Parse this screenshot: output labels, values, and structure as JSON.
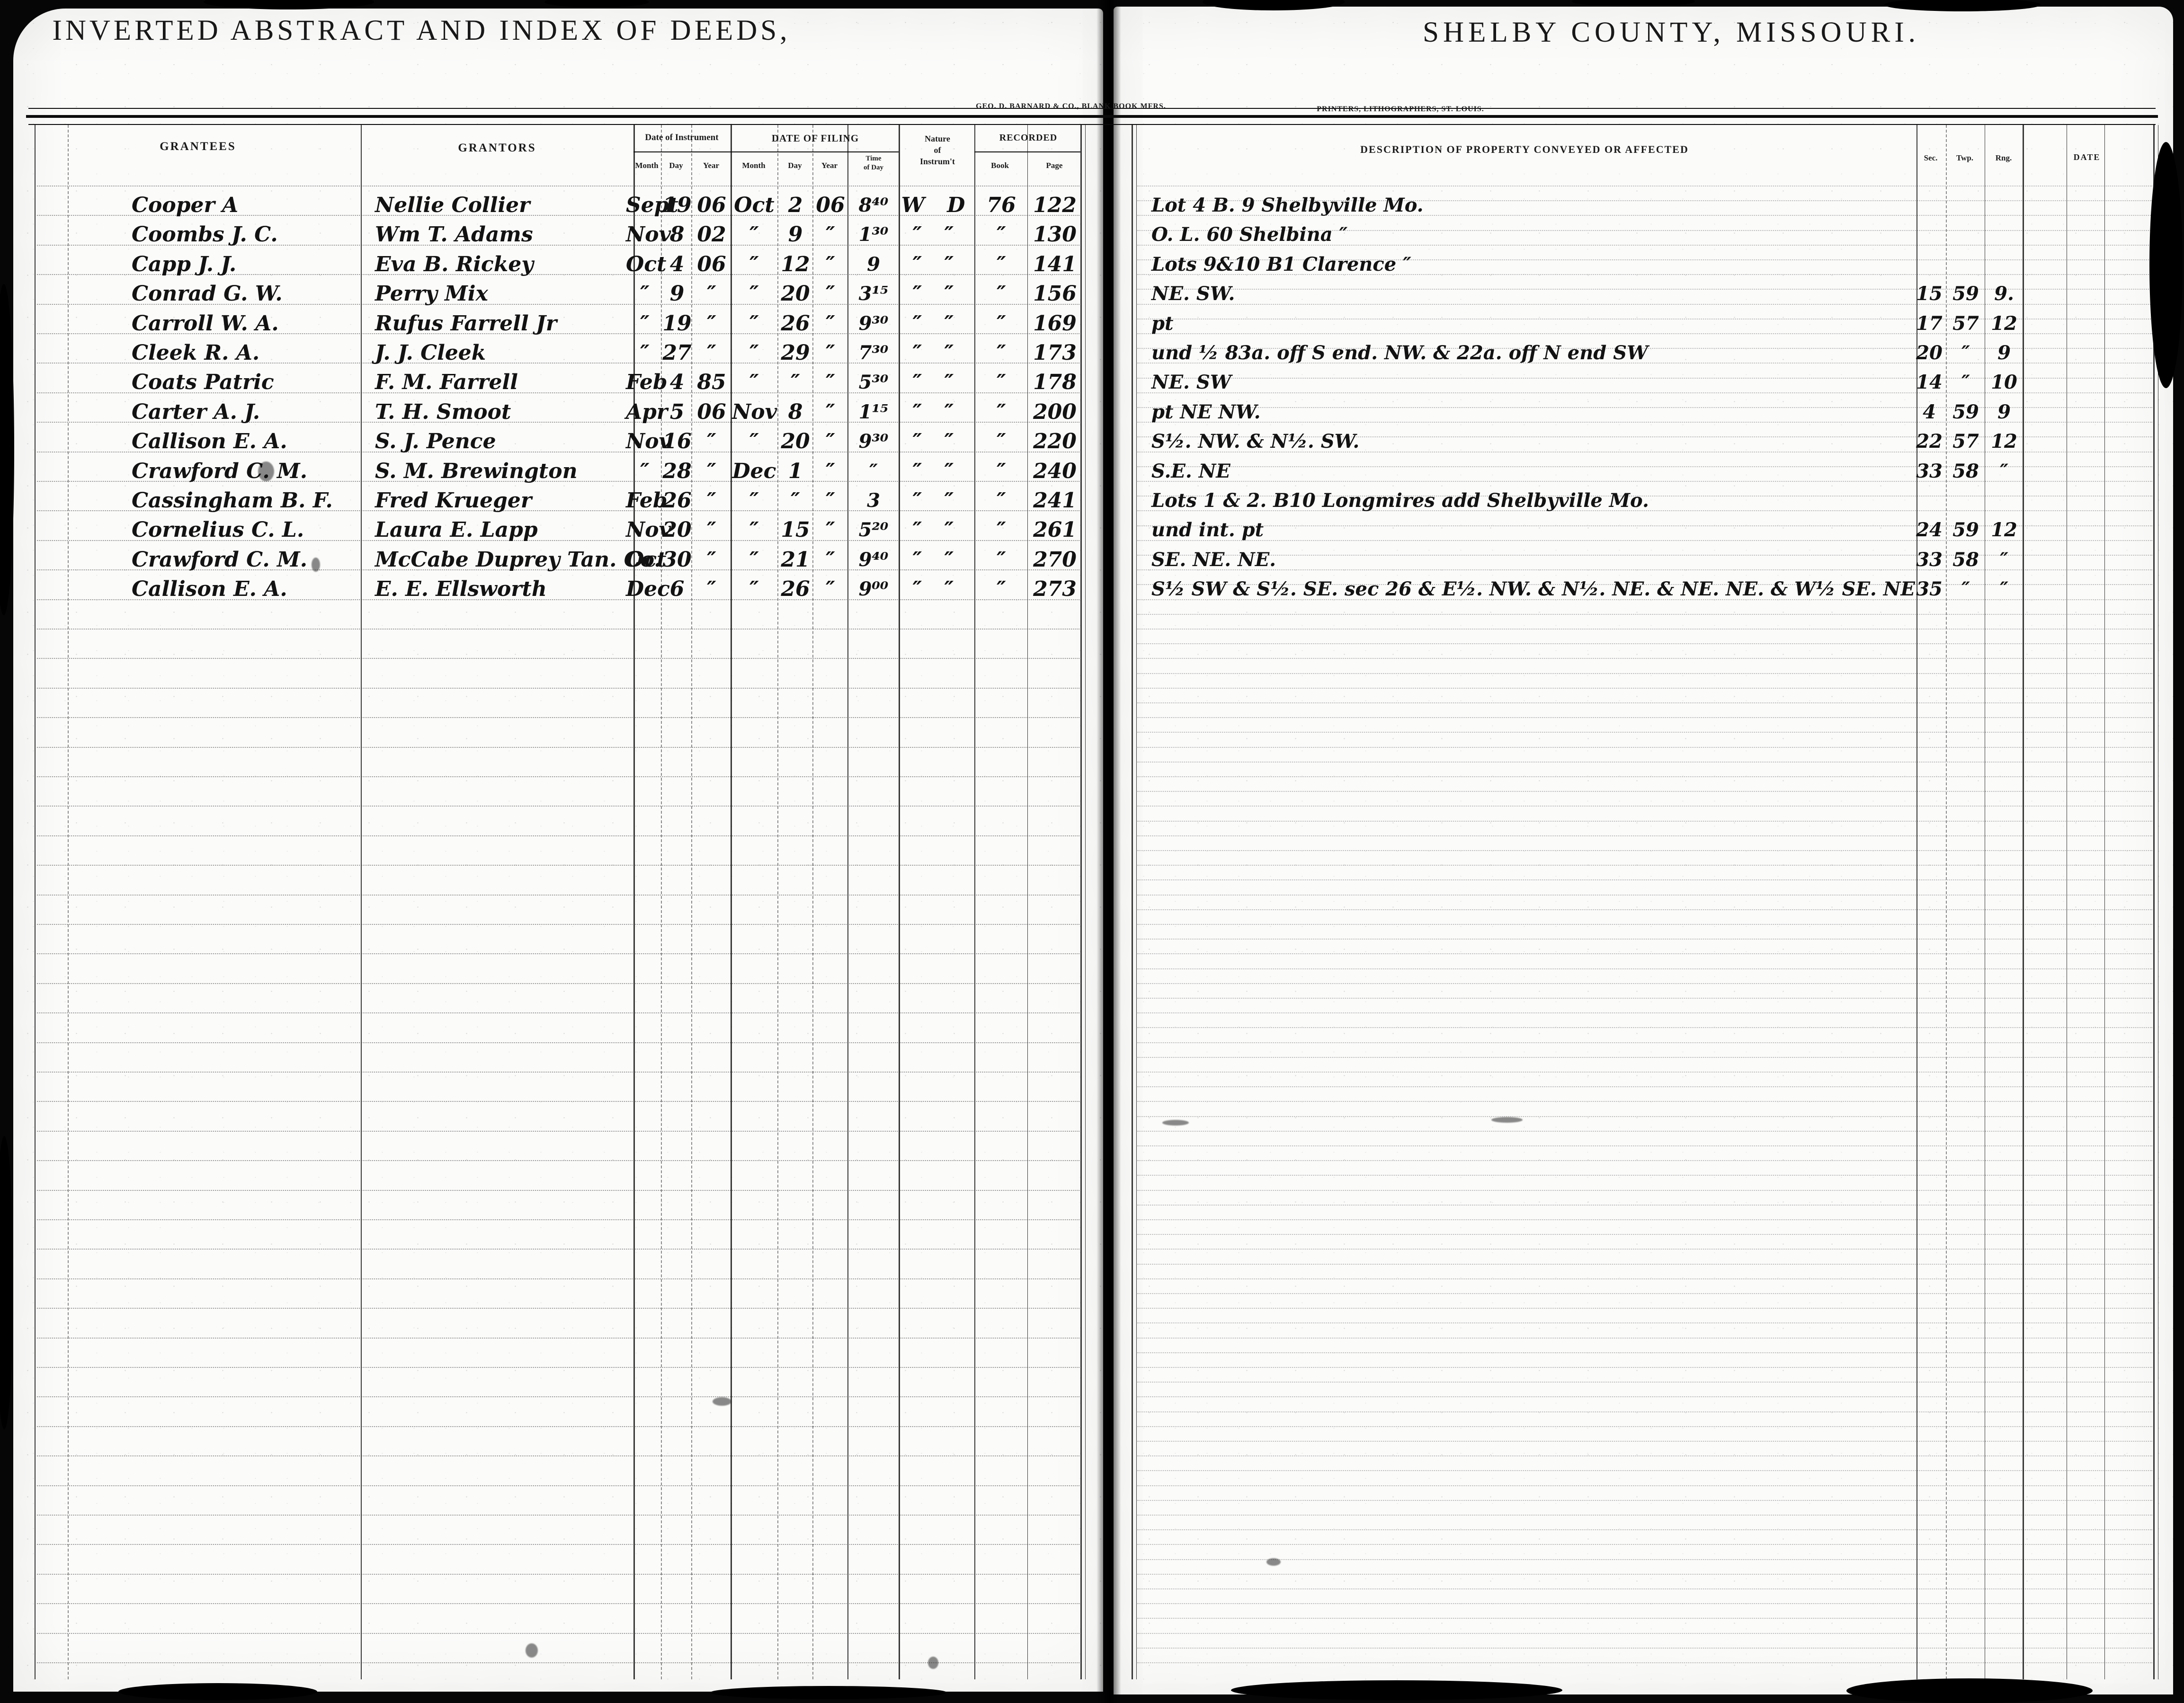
{
  "header": {
    "left_title": "INVERTED ABSTRACT AND INDEX OF DEEDS,",
    "right_title": "SHELBY COUNTY, MISSOURI.",
    "left_imprint": "GEO. D. BARNARD & CO., BLANK BOOK MFRS.",
    "right_imprint": "PRINTERS, LITHOGRAPHERS, ST. LOUIS."
  },
  "columns": {
    "grantees": "GRANTEES",
    "grantors": "GRANTORS",
    "date_of_instrument": "Date of Instrument",
    "date_of_filing": "DATE OF FILING",
    "month": "Month",
    "day": "Day",
    "year": "Year",
    "time_line1": "Time",
    "time_line2": "of Day",
    "nature_line1": "Nature",
    "nature_line2": "of",
    "nature_line3": "Instrum't",
    "recorded": "RECORDED",
    "book": "Book",
    "page": "Page",
    "description": "DESCRIPTION OF PROPERTY CONVEYED OR AFFECTED",
    "sec": "Sec.",
    "twp": "Twp.",
    "rng": "Rng.",
    "date": "DATE"
  },
  "entries": [
    {
      "grantee": "Cooper A",
      "grantor": "Nellie Collier",
      "inst_month": "Sept",
      "inst_day": "19",
      "inst_year": "06",
      "file_month": "Oct",
      "file_day": "2",
      "file_year": "06",
      "time": "8⁴⁰",
      "nature": "W D",
      "book": "76",
      "page": "122",
      "description": "Lot 4 B. 9 Shelbyville Mo.",
      "sec": "",
      "twp": "",
      "rng": ""
    },
    {
      "grantee": "Coombs J. C.",
      "grantor": "Wm T. Adams",
      "inst_month": "Nov",
      "inst_day": "8",
      "inst_year": "02",
      "file_month": "″",
      "file_day": "9",
      "file_year": "″",
      "time": "1³⁰",
      "nature": "″ ″",
      "book": "″",
      "page": "130",
      "description": "O. L. 60 Shelbina ″",
      "sec": "",
      "twp": "",
      "rng": ""
    },
    {
      "grantee": "Capp J. J.",
      "grantor": "Eva B. Rickey",
      "inst_month": "Oct",
      "inst_day": "4",
      "inst_year": "06",
      "file_month": "″",
      "file_day": "12",
      "file_year": "″",
      "time": "9",
      "nature": "″ ″",
      "book": "″",
      "page": "141",
      "description": "Lots 9&10 B1 Clarence ″",
      "sec": "",
      "twp": "",
      "rng": ""
    },
    {
      "grantee": "Conrad G. W.",
      "grantor": "Perry Mix",
      "inst_month": "″",
      "inst_day": "9",
      "inst_year": "″",
      "file_month": "″",
      "file_day": "20",
      "file_year": "″",
      "time": "3¹⁵",
      "nature": "″ ″",
      "book": "″",
      "page": "156",
      "description": "NE. SW.",
      "sec": "15",
      "twp": "59",
      "rng": "9."
    },
    {
      "grantee": "Carroll W. A.",
      "grantor": "Rufus Farrell Jr",
      "inst_month": "″",
      "inst_day": "19",
      "inst_year": "″",
      "file_month": "″",
      "file_day": "26",
      "file_year": "″",
      "time": "9³⁰",
      "nature": "″ ″",
      "book": "″",
      "page": "169",
      "description": "pt",
      "sec": "17",
      "twp": "57",
      "rng": "12"
    },
    {
      "grantee": "Cleek R. A.",
      "grantor": "J. J. Cleek",
      "inst_month": "″",
      "inst_day": "27",
      "inst_year": "″",
      "file_month": "″",
      "file_day": "29",
      "file_year": "″",
      "time": "7³⁰",
      "nature": "″ ″",
      "book": "″",
      "page": "173",
      "description": "und ½ 83a. off S end. NW. & 22a. off N end SW",
      "sec": "20",
      "twp": "″",
      "rng": "9"
    },
    {
      "grantee": "Coats Patric",
      "grantor": "F. M. Farrell",
      "inst_month": "Feb",
      "inst_day": "4",
      "inst_year": "85",
      "file_month": "″",
      "file_day": "″",
      "file_year": "″",
      "time": "5³⁰",
      "nature": "″ ″",
      "book": "″",
      "page": "178",
      "description": "NE. SW",
      "sec": "14",
      "twp": "″",
      "rng": "10"
    },
    {
      "grantee": "Carter A. J.",
      "grantor": "T. H. Smoot",
      "inst_month": "Apr",
      "inst_day": "5",
      "inst_year": "06",
      "file_month": "Nov",
      "file_day": "8",
      "file_year": "″",
      "time": "1¹⁵",
      "nature": "″ ″",
      "book": "″",
      "page": "200",
      "description": "pt NE NW.",
      "sec": "4",
      "twp": "59",
      "rng": "9"
    },
    {
      "grantee": "Callison E. A.",
      "grantor": "S. J. Pence",
      "inst_month": "Nov",
      "inst_day": "16",
      "inst_year": "″",
      "file_month": "″",
      "file_day": "20",
      "file_year": "″",
      "time": "9³⁰",
      "nature": "″ ″",
      "book": "″",
      "page": "220",
      "description": "S½. NW. & N½. SW.",
      "sec": "22",
      "twp": "57",
      "rng": "12"
    },
    {
      "grantee": "Crawford C. M.",
      "grantor": "S. M. Brewington",
      "inst_month": "″",
      "inst_day": "28",
      "inst_year": "″",
      "file_month": "Dec",
      "file_day": "1",
      "file_year": "″",
      "time": "″",
      "nature": "″ ″",
      "book": "″",
      "page": "240",
      "description": "S.E. NE",
      "sec": "33",
      "twp": "58",
      "rng": "″"
    },
    {
      "grantee": "Cassingham B. F.",
      "grantor": "Fred Krueger",
      "inst_month": "Feb",
      "inst_day": "26",
      "inst_year": "″",
      "file_month": "″",
      "file_day": "″",
      "file_year": "″",
      "time": "3",
      "nature": "″ ″",
      "book": "″",
      "page": "241",
      "description": "Lots 1 & 2. B10 Longmires add Shelbyville Mo.",
      "sec": "",
      "twp": "",
      "rng": ""
    },
    {
      "grantee": "Cornelius C. L.",
      "grantor": "Laura E. Lapp",
      "inst_month": "Nov",
      "inst_day": "20",
      "inst_year": "″",
      "file_month": "″",
      "file_day": "15",
      "file_year": "″",
      "time": "5²⁰",
      "nature": "″ ″",
      "book": "″",
      "page": "261",
      "description": "und int. pt",
      "sec": "24",
      "twp": "59",
      "rng": "12"
    },
    {
      "grantee": "Crawford C. M.",
      "grantor": "McCabe Duprey Tan. Co.",
      "inst_month": "Oct",
      "inst_day": "30",
      "inst_year": "″",
      "file_month": "″",
      "file_day": "21",
      "file_year": "″",
      "time": "9⁴⁰",
      "nature": "″ ″",
      "book": "″",
      "page": "270",
      "description": "SE. NE. NE.",
      "sec": "33",
      "twp": "58",
      "rng": "″"
    },
    {
      "grantee": "Callison E. A.",
      "grantor": "E. E. Ellsworth",
      "inst_month": "Dec",
      "inst_day": "6",
      "inst_year": "″",
      "file_month": "″",
      "file_day": "26",
      "file_year": "″",
      "time": "9⁰⁰",
      "nature": "″ ″",
      "book": "″",
      "page": "273",
      "description": "S½ SW & S½. SE. sec 26 & E½. NW. & N½. NE. & NE. NE. & W½ SE. NE",
      "sec": "35",
      "twp": "″",
      "rng": "″"
    }
  ]
}
